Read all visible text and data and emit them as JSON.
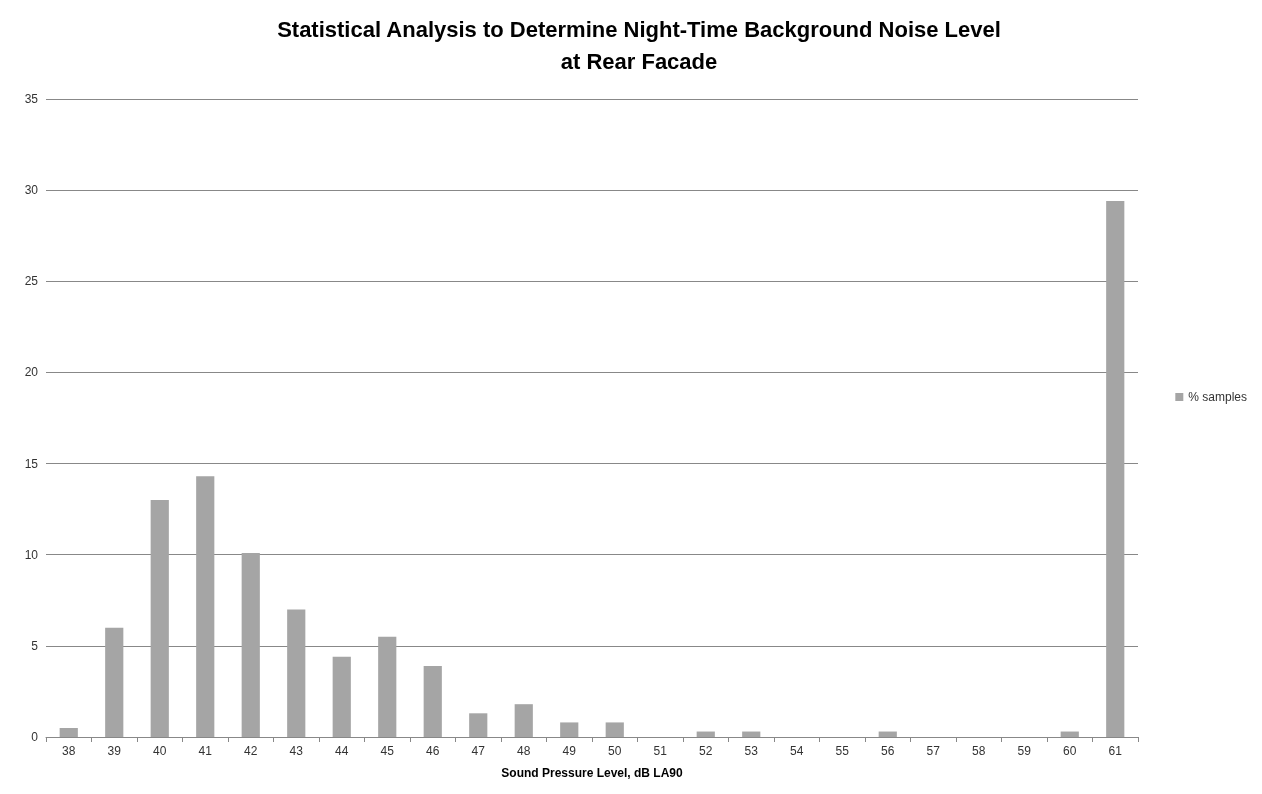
{
  "chart_data": {
    "type": "bar",
    "title": "Statistical Analysis to Determine Night-Time Background Noise Level\nat Rear Facade",
    "xlabel": "Sound Pressure Level, dB LA90",
    "categories": [
      "38",
      "39",
      "40",
      "41",
      "42",
      "43",
      "44",
      "45",
      "46",
      "47",
      "48",
      "49",
      "50",
      "51",
      "52",
      "53",
      "54",
      "55",
      "56",
      "57",
      "58",
      "59",
      "60",
      "61"
    ],
    "series": [
      {
        "name": "% samples",
        "color": "#a5a5a5",
        "values": [
          0.5,
          6.0,
          13.0,
          14.3,
          10.1,
          7.0,
          4.4,
          5.5,
          3.9,
          1.3,
          1.8,
          0.8,
          0.8,
          0,
          0.3,
          0.3,
          0,
          0,
          0.3,
          0,
          0,
          0,
          0.3,
          29.4
        ]
      }
    ],
    "ylim": [
      0,
      35
    ],
    "yticks": [
      0,
      5,
      10,
      15,
      20,
      25,
      30,
      35
    ],
    "grid": "y",
    "legend": "right"
  }
}
